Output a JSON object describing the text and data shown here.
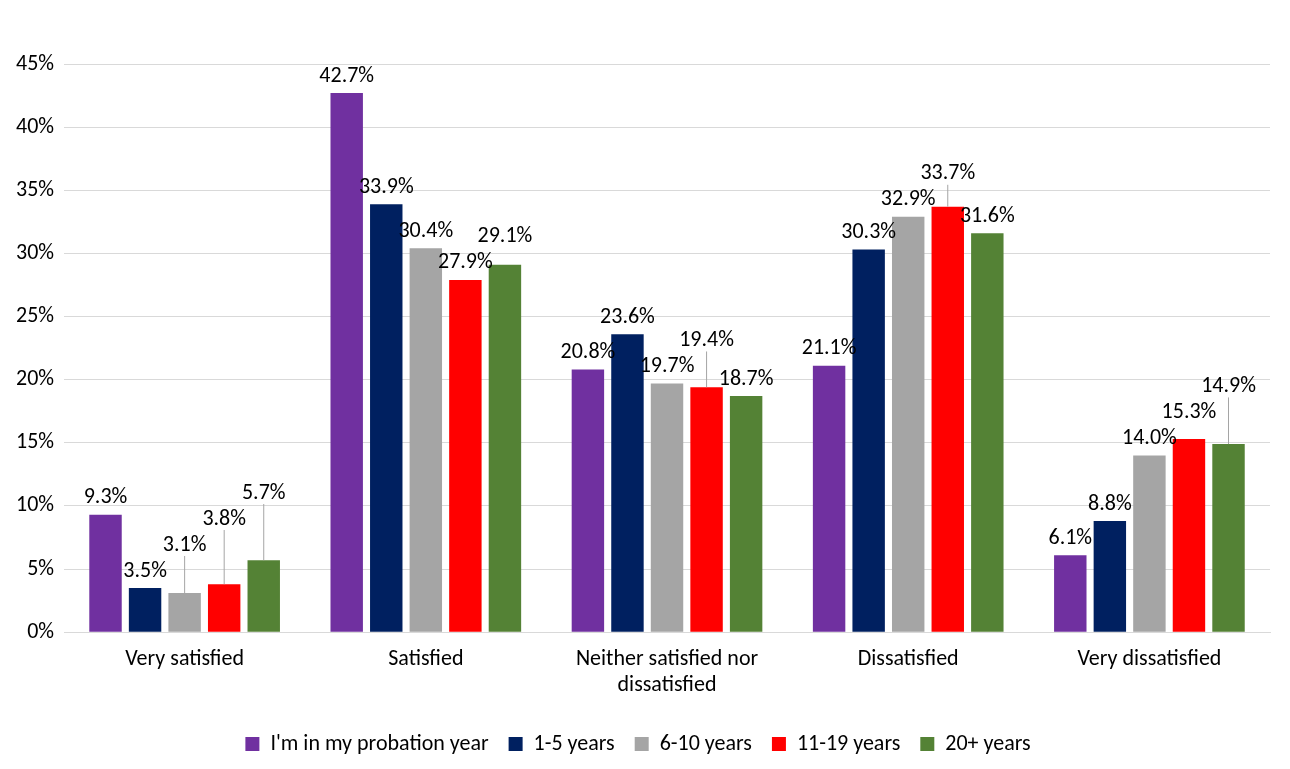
{
  "chart_data": {
    "type": "bar",
    "categories": [
      "Very satisfied",
      "Satisfied",
      "Neither satisfied nor dissatisfied",
      "Dissatisfied",
      "Very dissatisfied"
    ],
    "series": [
      {
        "name": "I'm in my probation year",
        "color": "#7030a0",
        "values": [
          9.3,
          42.7,
          20.8,
          21.1,
          6.1
        ]
      },
      {
        "name": "1-5 years",
        "color": "#002060",
        "values": [
          3.5,
          33.9,
          23.6,
          30.3,
          8.8
        ]
      },
      {
        "name": "6-10 years",
        "color": "#a5a5a5",
        "values": [
          3.1,
          30.4,
          19.7,
          32.9,
          14.0
        ]
      },
      {
        "name": "11-19 years",
        "color": "#ff0000",
        "values": [
          3.8,
          27.9,
          19.4,
          33.7,
          15.3
        ]
      },
      {
        "name": "20+ years",
        "color": "#548235",
        "values": [
          5.7,
          29.1,
          18.7,
          31.6,
          14.9
        ]
      }
    ],
    "ylim": [
      0,
      45
    ],
    "yticks": [
      {
        "value": 0,
        "label": "0%"
      },
      {
        "value": 5,
        "label": "5%"
      },
      {
        "value": 10,
        "label": "10%"
      },
      {
        "value": 15,
        "label": "15%"
      },
      {
        "value": 20,
        "label": "20%"
      },
      {
        "value": 25,
        "label": "25%"
      },
      {
        "value": 30,
        "label": "30%"
      },
      {
        "value": 35,
        "label": "35%"
      },
      {
        "value": 40,
        "label": "40%"
      },
      {
        "value": 45,
        "label": "45%"
      }
    ],
    "value_labels": [
      [
        "9.3%",
        "42.7%",
        "20.8%",
        "21.1%",
        "6.1%"
      ],
      [
        "3.5%",
        "33.9%",
        "23.6%",
        "30.3%",
        "8.8%"
      ],
      [
        "3.1%",
        "30.4%",
        "19.7%",
        "32.9%",
        "14.0%"
      ],
      [
        "3.8%",
        "27.9%",
        "19.4%",
        "33.7%",
        "15.3%"
      ],
      [
        "5.7%",
        "29.1%",
        "18.7%",
        "31.6%",
        "14.9%"
      ]
    ],
    "grid": "y",
    "legend": "bottom"
  }
}
